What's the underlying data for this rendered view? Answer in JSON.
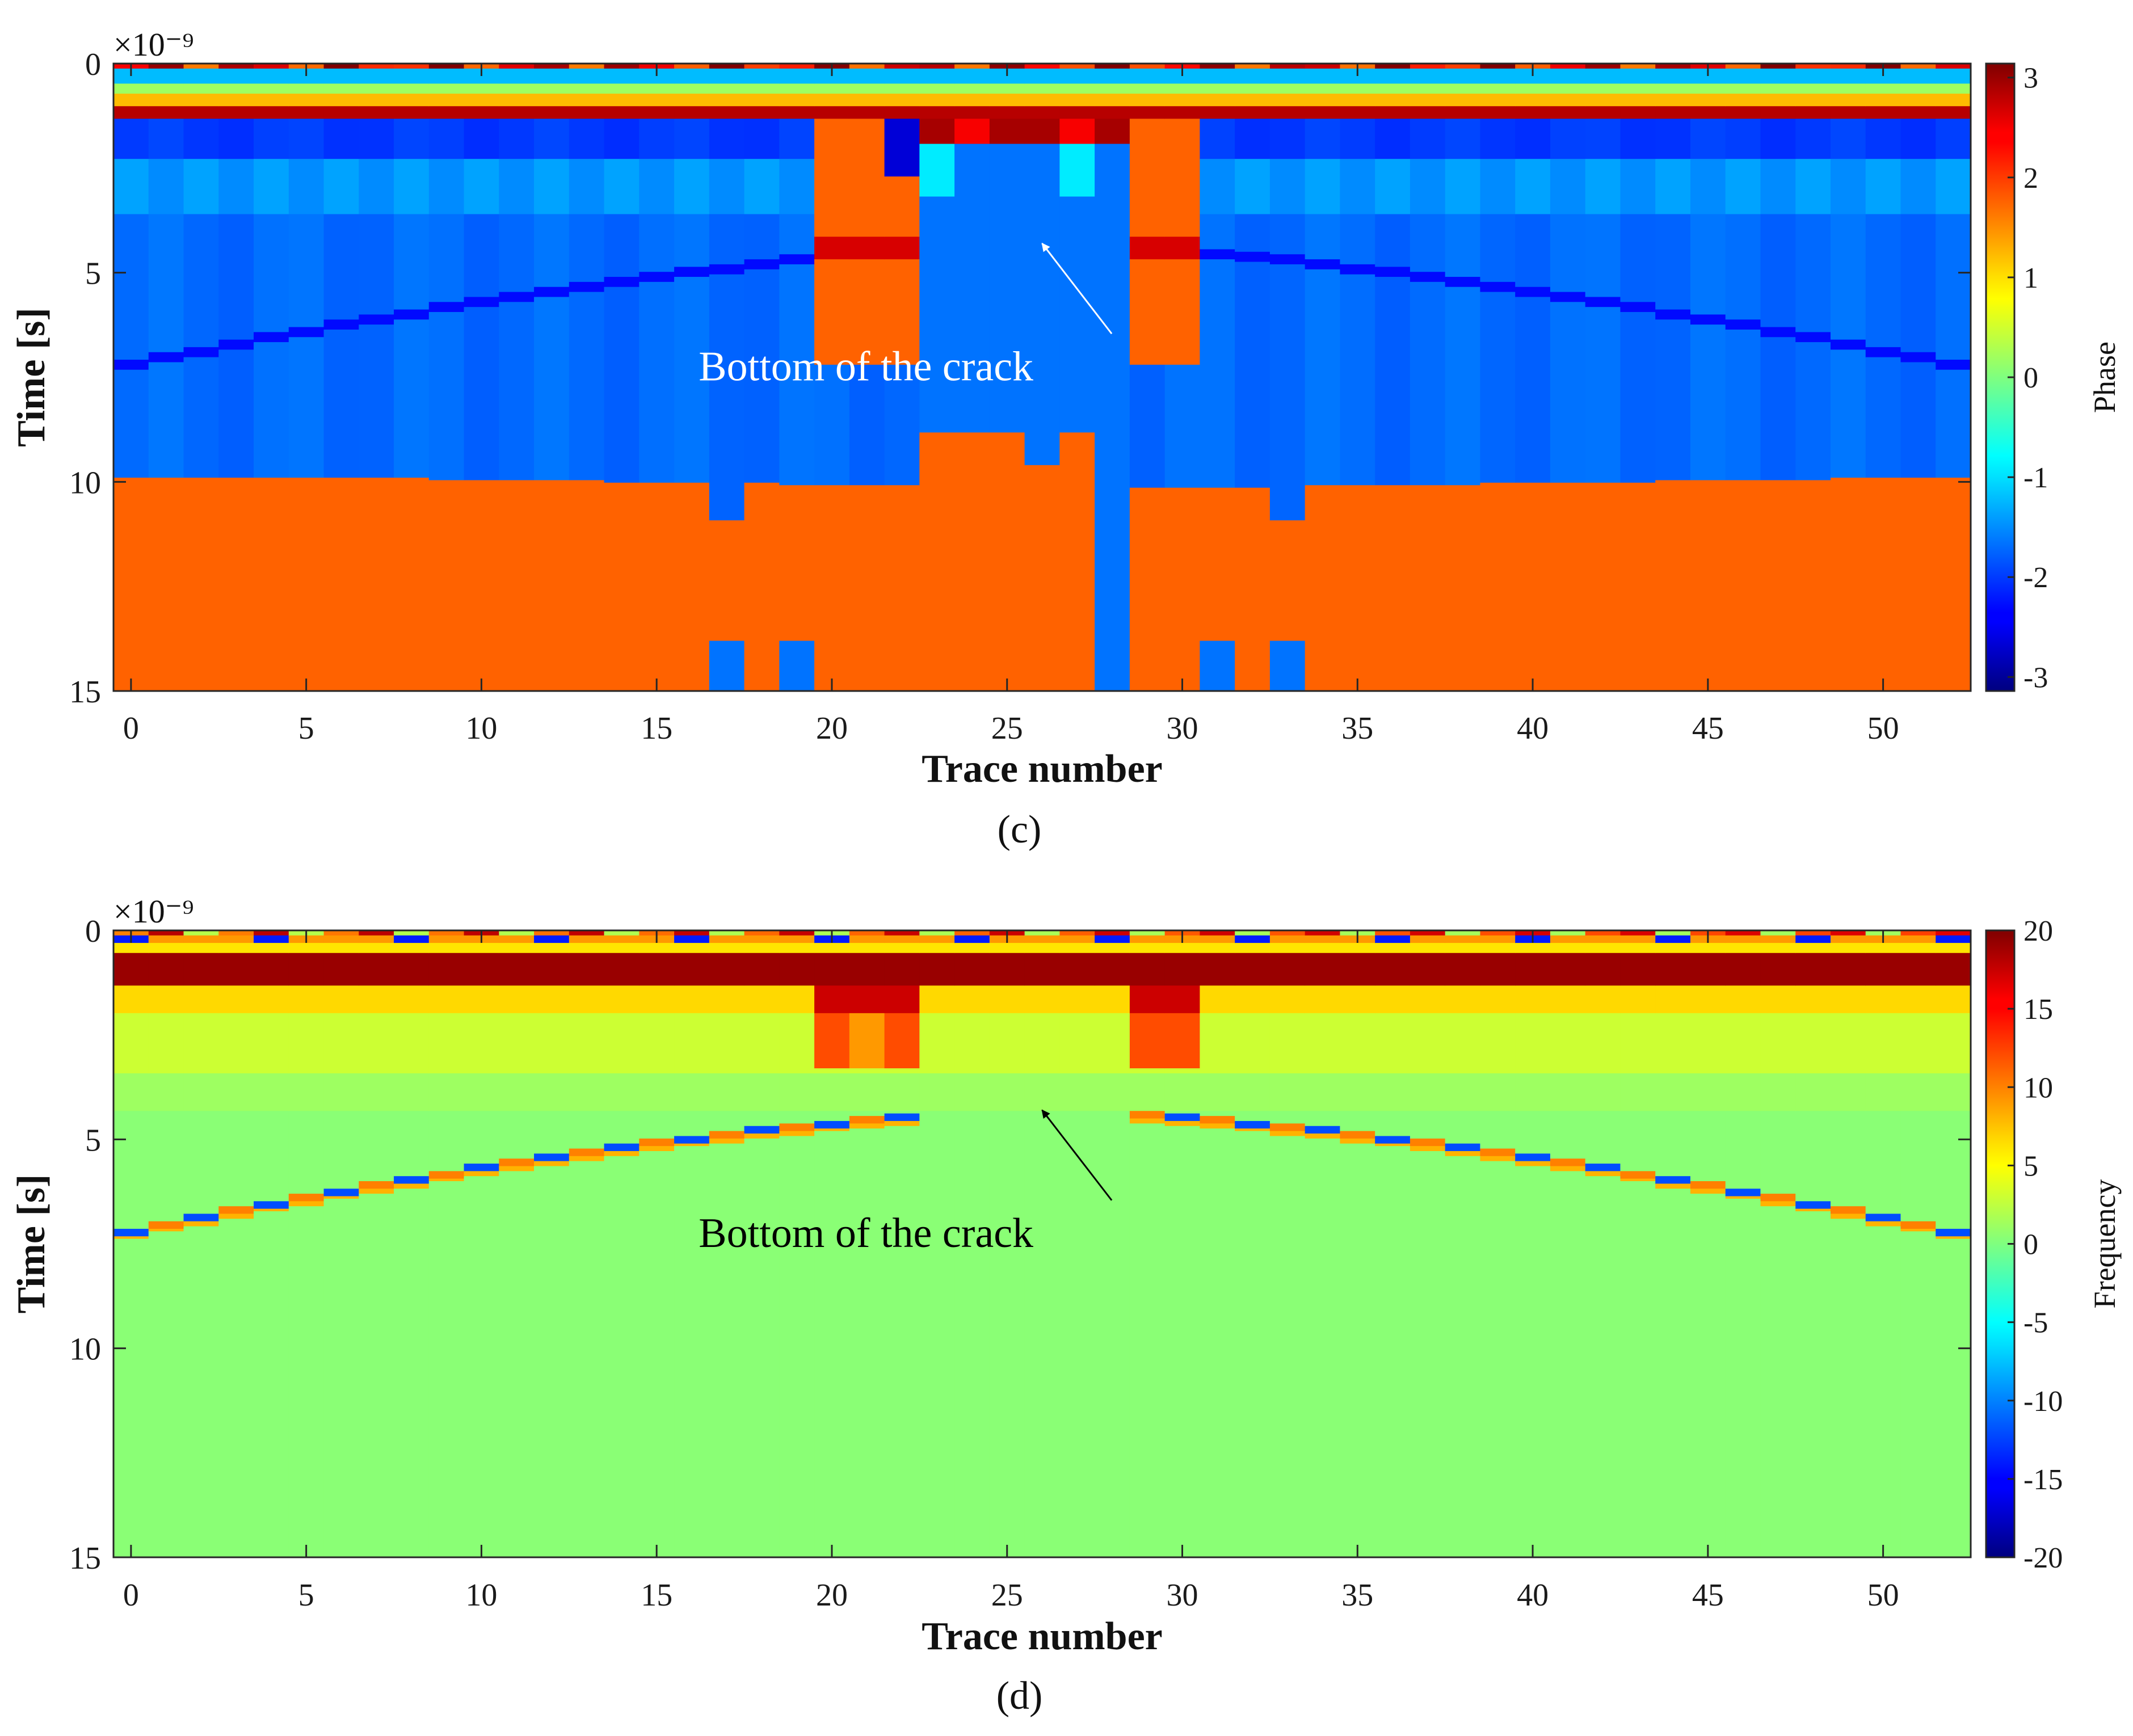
{
  "chart_data": [
    {
      "panel_label": "(c)",
      "type": "heatmap",
      "xlabel": "Trace number",
      "ylabel": "Time [s]",
      "y_scale_label": "×10⁻⁹",
      "x_ticks": [
        0,
        5,
        10,
        15,
        20,
        25,
        30,
        35,
        40,
        45,
        50
      ],
      "y_ticks": [
        0,
        5,
        10,
        15
      ],
      "xlim": [
        -0.5,
        52.5
      ],
      "ylim": [
        0,
        15
      ],
      "colorbar": {
        "label": "Phase",
        "range": [
          -3.14,
          3.14
        ],
        "ticks": [
          3,
          2,
          1,
          0,
          -1,
          -2,
          -3
        ],
        "colormap": "jet"
      },
      "annotation": {
        "text": "Bottom of the crack",
        "arrow_to": [
          26,
          4.3
        ],
        "text_at": [
          27.5,
          7.3
        ],
        "color": "#ffffff"
      },
      "field": "phase"
    },
    {
      "panel_label": "(d)",
      "type": "heatmap",
      "xlabel": "Trace number",
      "ylabel": "Time [s]",
      "y_scale_label": "×10⁻⁹",
      "x_ticks": [
        0,
        5,
        10,
        15,
        20,
        25,
        30,
        35,
        40,
        45,
        50
      ],
      "y_ticks": [
        0,
        5,
        10,
        15
      ],
      "xlim": [
        -0.5,
        52.5
      ],
      "ylim": [
        0,
        15
      ],
      "colorbar": {
        "label": "Frequency",
        "range": [
          -20,
          20
        ],
        "ticks": [
          20,
          15,
          10,
          5,
          0,
          -5,
          -10,
          -15,
          -20
        ],
        "colormap": "jet"
      },
      "annotation": {
        "text": "Bottom of the crack",
        "arrow_to": [
          26,
          4.3
        ],
        "text_at": [
          27.5,
          7.3
        ],
        "color": "#000000"
      },
      "field": "frequency"
    }
  ]
}
